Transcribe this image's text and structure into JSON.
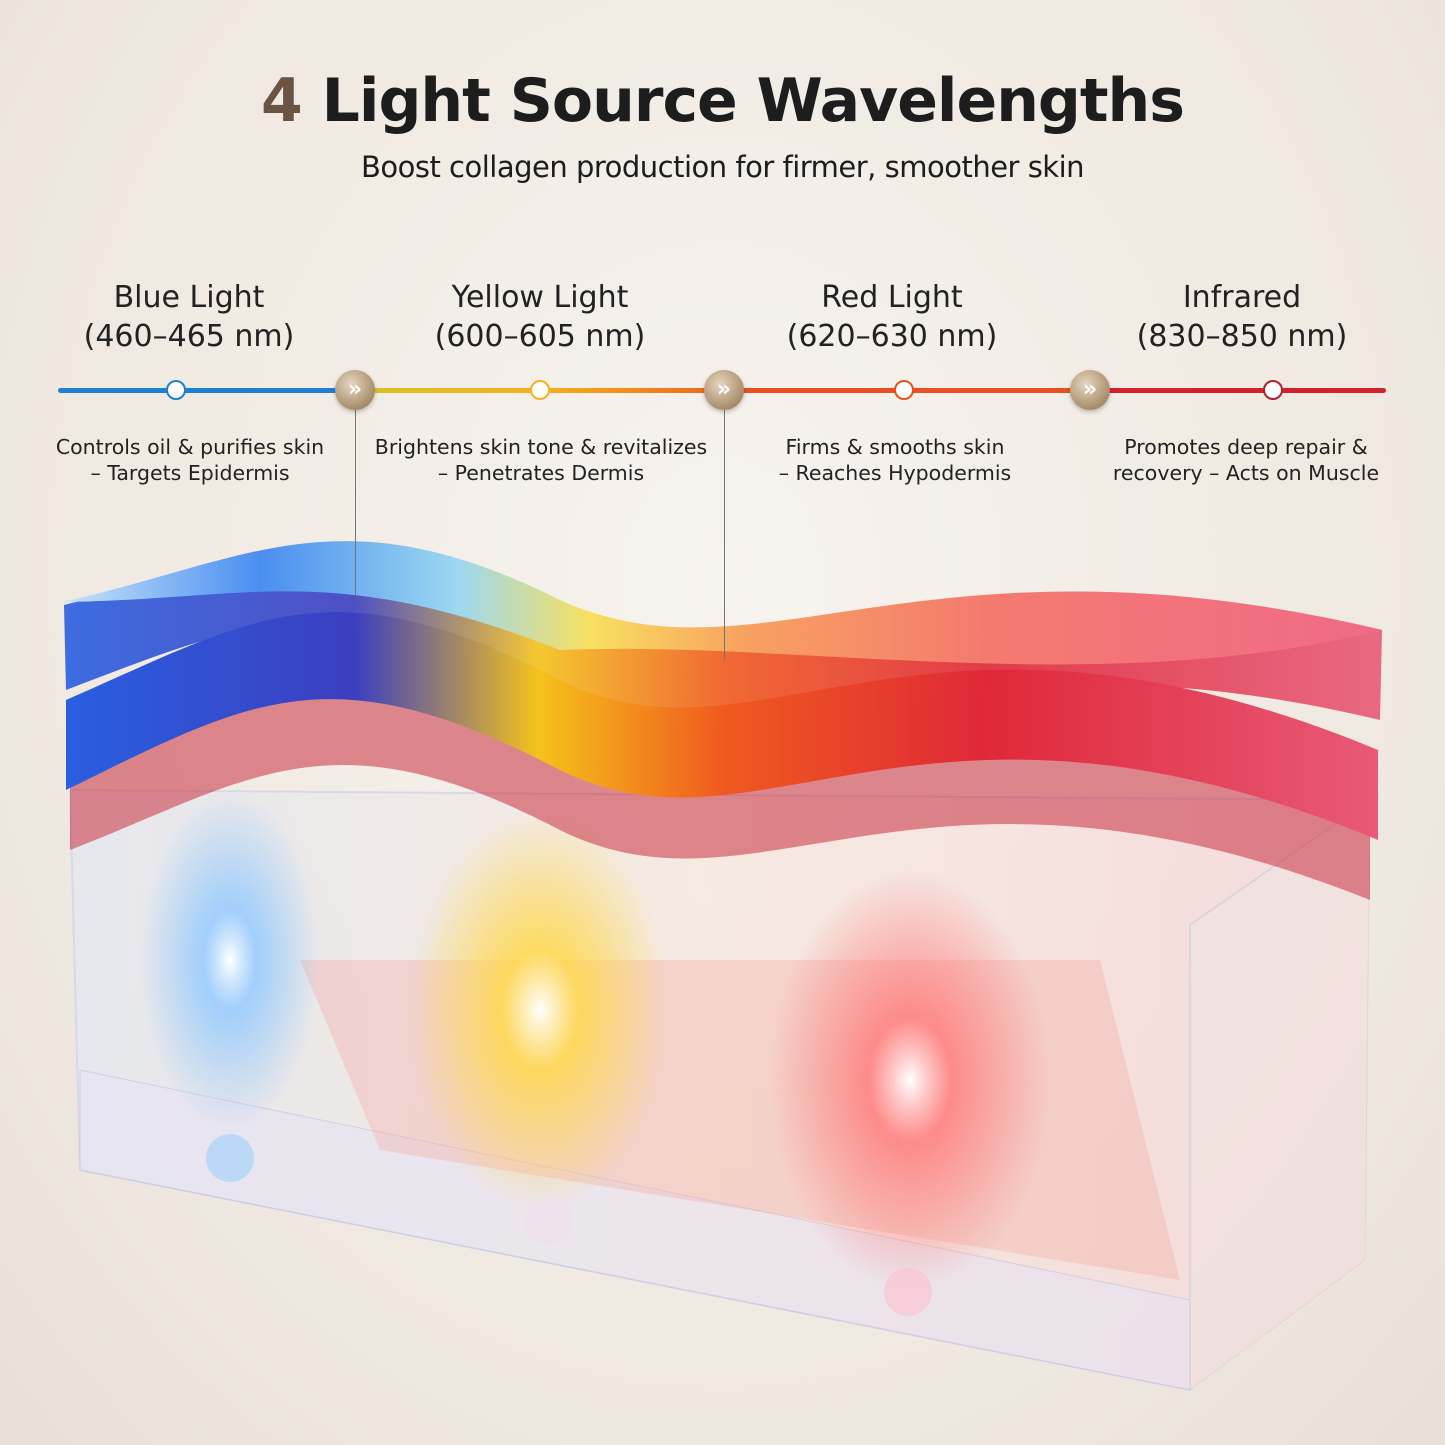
{
  "header": {
    "title_number": "4",
    "title_text": "Light Source Wavelengths",
    "subtitle": "Boost collagen production for firmer, smoother skin"
  },
  "lights": [
    {
      "name": "Blue Light",
      "range": "(460–465 nm)",
      "desc_line1": "Controls oil & purifies skin",
      "desc_line2": "– Targets Epidermis",
      "color": "#1f7fd6"
    },
    {
      "name": "Yellow Light",
      "range": "(600–605 nm)",
      "desc_line1": "Brightens skin tone & revitalizes",
      "desc_line2": "– Penetrates Dermis",
      "color": "#f2b21c"
    },
    {
      "name": "Red Light",
      "range": "(620–630 nm)",
      "desc_line1": "Firms & smooths skin",
      "desc_line2": "– Reaches Hypodermis",
      "color": "#e8501f"
    },
    {
      "name": "Infrared",
      "range": "(830–850 nm)",
      "desc_line1": "Promotes deep repair &",
      "desc_line2": "recovery – Acts on Muscle",
      "color": "#d3202d"
    }
  ],
  "badge_icon": "double-chevron-right-icon",
  "badge_glyph": "»"
}
